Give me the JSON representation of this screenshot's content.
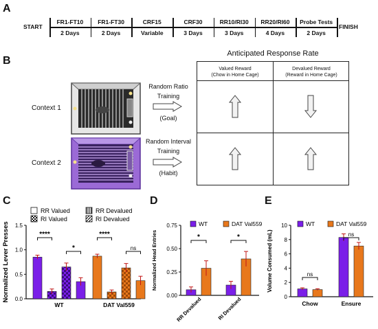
{
  "panel_labels": {
    "a": "A",
    "b": "B",
    "c": "C",
    "d": "D",
    "e": "E"
  },
  "timeline": {
    "start": "START",
    "finish": "FINISH",
    "stages": [
      {
        "name": "FR1-FT10",
        "duration": "2 Days"
      },
      {
        "name": "FR1-FT30",
        "duration": "2 Days"
      },
      {
        "name": "CRF15",
        "duration": "Variable"
      },
      {
        "name": "CRF30",
        "duration": "3 Days"
      },
      {
        "name": "RR10/RI30",
        "duration": "3 Days"
      },
      {
        "name": "RR20/RI60",
        "duration": "4 Days"
      },
      {
        "name": "Probe Tests",
        "duration": "2 Days"
      }
    ]
  },
  "panel_b": {
    "context1": "Context 1",
    "context2": "Context 2",
    "arrow1": {
      "line1": "Random Ratio",
      "line2": "Training",
      "line3": "(Goal)"
    },
    "arrow2": {
      "line1": "Random Interval",
      "line2": "Training",
      "line3": "(Habit)"
    },
    "table_title": "Anticipated Response Rate",
    "col1": {
      "line1": "Valued Reward",
      "line2": "(Chow in Home Cage)"
    },
    "col2": {
      "line1": "Devalued Reward",
      "line2": "(Reward in Home Cage)"
    },
    "arrows": [
      [
        "up",
        "down"
      ],
      [
        "up",
        "up"
      ]
    ]
  },
  "colors": {
    "wt": "#7a1fe8",
    "dat": "#e8781c",
    "dat_alt": "#b8960f"
  },
  "chart_data": [
    {
      "id": "C",
      "type": "bar",
      "ylabel": "Normalized Lever Presses",
      "yticks": [
        "0.0",
        "0.5",
        "1.0",
        "1.5"
      ],
      "ylim": [
        0,
        1.5
      ],
      "groups": [
        "WT",
        "DAT Val559"
      ],
      "legend": [
        "RR Valued",
        "RI Valued",
        "RR Devalued",
        "RI Devalued"
      ],
      "series": [
        {
          "name": "RR Valued",
          "values": [
            0.85,
            0.87
          ],
          "errors": [
            0.04,
            0.04
          ]
        },
        {
          "name": "RR Devalued",
          "values": [
            0.15,
            0.14
          ],
          "errors": [
            0.05,
            0.04
          ]
        },
        {
          "name": "RI Valued",
          "values": [
            0.65,
            0.63
          ],
          "errors": [
            0.08,
            0.09
          ]
        },
        {
          "name": "RI Devalued",
          "values": [
            0.35,
            0.37
          ],
          "errors": [
            0.08,
            0.09
          ]
        }
      ],
      "significance": [
        {
          "group": "WT",
          "label": "****"
        },
        {
          "group": "WT",
          "label": "*"
        },
        {
          "group": "DAT Val559",
          "label": "****"
        },
        {
          "group": "DAT Val559",
          "label": "ns"
        }
      ]
    },
    {
      "id": "D",
      "type": "bar",
      "ylabel": "Normalized Head Entries",
      "yticks": [
        "0.00",
        "0.25",
        "0.50",
        "0.75"
      ],
      "ylim": [
        0,
        0.75
      ],
      "categories": [
        "RR Devalued",
        "RI Devalued"
      ],
      "series": [
        {
          "name": "WT",
          "values": [
            0.06,
            0.11
          ],
          "errors": [
            0.03,
            0.04
          ]
        },
        {
          "name": "DAT Val559",
          "values": [
            0.29,
            0.39
          ],
          "errors": [
            0.08,
            0.08
          ]
        }
      ],
      "significance": [
        "*",
        "*"
      ]
    },
    {
      "id": "E",
      "type": "bar",
      "ylabel": "Volume Consumed (mL)",
      "yticks": [
        "0",
        "2",
        "4",
        "6",
        "8",
        "10"
      ],
      "ylim": [
        0,
        10
      ],
      "categories": [
        "Chow",
        "Ensure"
      ],
      "series": [
        {
          "name": "WT",
          "values": [
            1.1,
            8.3
          ],
          "errors": [
            0.15,
            0.5
          ]
        },
        {
          "name": "DAT Val559",
          "values": [
            1.0,
            7.1
          ],
          "errors": [
            0.12,
            0.5
          ]
        }
      ],
      "significance": [
        "ns",
        "ns"
      ]
    }
  ]
}
